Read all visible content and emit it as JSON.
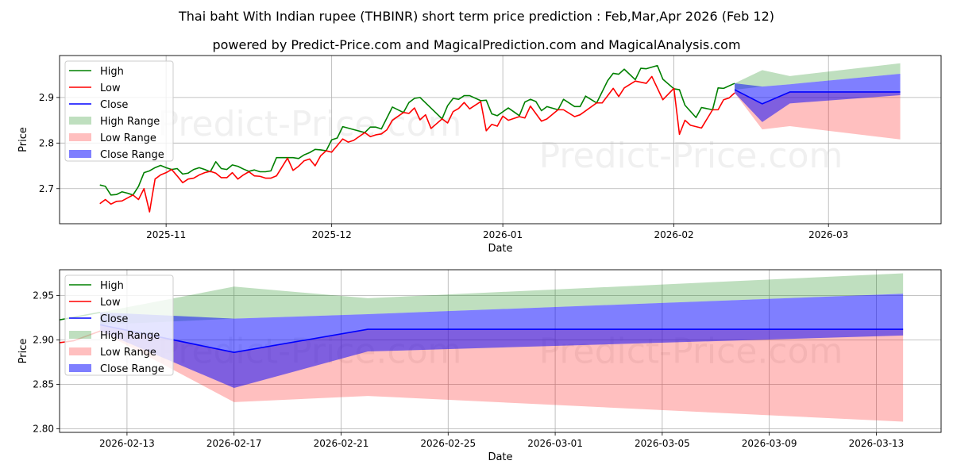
{
  "header": {
    "title": "Thai baht With Indian rupee (THBINR) short term price prediction : Feb,Mar,Apr 2026 (Feb 12)",
    "subtitle": "powered by Predict-Price.com and MagicalPrediction.com and MagicalAnalysis.com"
  },
  "watermark": "Predict-Price.com",
  "colors": {
    "high": "#008000",
    "low": "#ff0000",
    "close": "#0000ff",
    "high_range": "#008000",
    "low_range": "#ff0000",
    "close_range": "#0000ff"
  },
  "legend": [
    "High",
    "Low",
    "Close",
    "High Range",
    "Low Range",
    "Close Range"
  ],
  "chart_data": [
    {
      "type": "line",
      "x_unit": "days since 2025-11-01",
      "xlim": [
        -19.3,
        140.4
      ],
      "ylim": [
        2.623,
        2.992
      ],
      "xlabel": "Date",
      "ylabel": "Price",
      "grid": true,
      "legend_position": "top-left",
      "xticks": [
        {
          "x": 0,
          "label": "2025-11"
        },
        {
          "x": 30,
          "label": "2025-12"
        },
        {
          "x": 61,
          "label": "2026-01"
        },
        {
          "x": 92,
          "label": "2026-02"
        },
        {
          "x": 120,
          "label": "2026-03"
        }
      ],
      "yticks": [
        {
          "y": 2.7,
          "label": "2.7"
        },
        {
          "y": 2.8,
          "label": "2.8"
        },
        {
          "y": 2.9,
          "label": "2.9"
        }
      ]
    },
    {
      "type": "line",
      "x_unit": "days since 2025-11-01",
      "xlim": [
        101.48,
        134.42
      ],
      "ylim": [
        2.796,
        2.979
      ],
      "xlabel": "Date",
      "ylabel": "Price",
      "grid": true,
      "legend_position": "top-left",
      "xticks": [
        {
          "x": 104,
          "label": "2026-02-13"
        },
        {
          "x": 108,
          "label": "2026-02-17"
        },
        {
          "x": 112,
          "label": "2026-02-21"
        },
        {
          "x": 116,
          "label": "2026-02-25"
        },
        {
          "x": 120,
          "label": "2026-03-01"
        },
        {
          "x": 124,
          "label": "2026-03-05"
        },
        {
          "x": 128,
          "label": "2026-03-09"
        },
        {
          "x": 132,
          "label": "2026-03-13"
        }
      ],
      "yticks": [
        {
          "y": 2.8,
          "label": "2.80"
        },
        {
          "y": 2.85,
          "label": "2.85"
        },
        {
          "y": 2.9,
          "label": "2.90"
        },
        {
          "y": 2.95,
          "label": "2.95"
        }
      ]
    }
  ],
  "series": {
    "high": [
      [
        -12,
        2.708
      ],
      [
        -11,
        2.705
      ],
      [
        -10,
        2.686
      ],
      [
        -9,
        2.687
      ],
      [
        -8,
        2.693
      ],
      [
        -7,
        2.69
      ],
      [
        -6,
        2.686
      ],
      [
        -5,
        2.705
      ],
      [
        -4,
        2.735
      ],
      [
        -3,
        2.739
      ],
      [
        -2,
        2.746
      ],
      [
        -1,
        2.751
      ],
      [
        0,
        2.746
      ],
      [
        1,
        2.742
      ],
      [
        2,
        2.744
      ],
      [
        3,
        2.732
      ],
      [
        4,
        2.734
      ],
      [
        5,
        2.742
      ],
      [
        6,
        2.746
      ],
      [
        7,
        2.742
      ],
      [
        8,
        2.737
      ],
      [
        9,
        2.759
      ],
      [
        10,
        2.744
      ],
      [
        11,
        2.742
      ],
      [
        12,
        2.752
      ],
      [
        13,
        2.749
      ],
      [
        14,
        2.743
      ],
      [
        15,
        2.738
      ],
      [
        16,
        2.741
      ],
      [
        17,
        2.737
      ],
      [
        18,
        2.737
      ],
      [
        19,
        2.739
      ],
      [
        20,
        2.768
      ],
      [
        21,
        2.768
      ],
      [
        22,
        2.768
      ],
      [
        23,
        2.768
      ],
      [
        24,
        2.766
      ],
      [
        25,
        2.774
      ],
      [
        26,
        2.779
      ],
      [
        27,
        2.786
      ],
      [
        28,
        2.785
      ],
      [
        29,
        2.783
      ],
      [
        30,
        2.807
      ],
      [
        31,
        2.811
      ],
      [
        32,
        2.836
      ],
      [
        36,
        2.823
      ],
      [
        37,
        2.835
      ],
      [
        38,
        2.835
      ],
      [
        39,
        2.831
      ],
      [
        41,
        2.879
      ],
      [
        43,
        2.867
      ],
      [
        44,
        2.889
      ],
      [
        45,
        2.898
      ],
      [
        46,
        2.9
      ],
      [
        50,
        2.853
      ],
      [
        51,
        2.882
      ],
      [
        52,
        2.898
      ],
      [
        53,
        2.896
      ],
      [
        54,
        2.904
      ],
      [
        55,
        2.904
      ],
      [
        57,
        2.893
      ],
      [
        58,
        2.894
      ],
      [
        59,
        2.864
      ],
      [
        60,
        2.86
      ],
      [
        62,
        2.877
      ],
      [
        64,
        2.86
      ],
      [
        65,
        2.89
      ],
      [
        66,
        2.896
      ],
      [
        67,
        2.891
      ],
      [
        68,
        2.871
      ],
      [
        69,
        2.88
      ],
      [
        71,
        2.873
      ],
      [
        72,
        2.896
      ],
      [
        74,
        2.88
      ],
      [
        75,
        2.88
      ],
      [
        76,
        2.903
      ],
      [
        78,
        2.888
      ],
      [
        80,
        2.937
      ],
      [
        81,
        2.953
      ],
      [
        82,
        2.951
      ],
      [
        83,
        2.962
      ],
      [
        85,
        2.939
      ],
      [
        86,
        2.964
      ],
      [
        87,
        2.963
      ],
      [
        89,
        2.97
      ],
      [
        90,
        2.94
      ],
      [
        92,
        2.919
      ],
      [
        93,
        2.917
      ],
      [
        94,
        2.883
      ],
      [
        96,
        2.856
      ],
      [
        97,
        2.878
      ],
      [
        99,
        2.873
      ],
      [
        100,
        2.921
      ],
      [
        101,
        2.92
      ],
      [
        103,
        2.931
      ]
    ],
    "low": [
      [
        -12,
        2.667
      ],
      [
        -11,
        2.676
      ],
      [
        -10,
        2.666
      ],
      [
        -9,
        2.672
      ],
      [
        -8,
        2.673
      ],
      [
        -6,
        2.686
      ],
      [
        -5,
        2.676
      ],
      [
        -4,
        2.7
      ],
      [
        -3,
        2.649
      ],
      [
        -2,
        2.721
      ],
      [
        -1,
        2.73
      ],
      [
        0,
        2.735
      ],
      [
        1,
        2.742
      ],
      [
        2,
        2.728
      ],
      [
        3,
        2.713
      ],
      [
        4,
        2.721
      ],
      [
        5,
        2.723
      ],
      [
        6,
        2.73
      ],
      [
        7,
        2.735
      ],
      [
        8,
        2.738
      ],
      [
        9,
        2.734
      ],
      [
        10,
        2.724
      ],
      [
        11,
        2.724
      ],
      [
        12,
        2.735
      ],
      [
        13,
        2.721
      ],
      [
        14,
        2.73
      ],
      [
        15,
        2.737
      ],
      [
        16,
        2.728
      ],
      [
        17,
        2.727
      ],
      [
        18,
        2.723
      ],
      [
        19,
        2.723
      ],
      [
        20,
        2.728
      ],
      [
        22,
        2.767
      ],
      [
        23,
        2.74
      ],
      [
        24,
        2.749
      ],
      [
        25,
        2.761
      ],
      [
        26,
        2.765
      ],
      [
        27,
        2.75
      ],
      [
        28,
        2.772
      ],
      [
        29,
        2.783
      ],
      [
        30,
        2.78
      ],
      [
        32,
        2.809
      ],
      [
        33,
        2.802
      ],
      [
        34,
        2.806
      ],
      [
        36,
        2.823
      ],
      [
        37,
        2.814
      ],
      [
        38,
        2.818
      ],
      [
        39,
        2.82
      ],
      [
        40,
        2.829
      ],
      [
        41,
        2.85
      ],
      [
        43,
        2.867
      ],
      [
        44,
        2.865
      ],
      [
        45,
        2.877
      ],
      [
        46,
        2.851
      ],
      [
        47,
        2.862
      ],
      [
        48,
        2.832
      ],
      [
        50,
        2.853
      ],
      [
        51,
        2.844
      ],
      [
        52,
        2.869
      ],
      [
        53,
        2.876
      ],
      [
        54,
        2.889
      ],
      [
        55,
        2.875
      ],
      [
        57,
        2.891
      ],
      [
        58,
        2.827
      ],
      [
        59,
        2.841
      ],
      [
        60,
        2.837
      ],
      [
        61,
        2.859
      ],
      [
        62,
        2.85
      ],
      [
        64,
        2.858
      ],
      [
        65,
        2.855
      ],
      [
        66,
        2.881
      ],
      [
        68,
        2.848
      ],
      [
        69,
        2.853
      ],
      [
        71,
        2.873
      ],
      [
        72,
        2.873
      ],
      [
        74,
        2.858
      ],
      [
        75,
        2.862
      ],
      [
        78,
        2.888
      ],
      [
        79,
        2.888
      ],
      [
        81,
        2.92
      ],
      [
        82,
        2.902
      ],
      [
        83,
        2.921
      ],
      [
        85,
        2.936
      ],
      [
        87,
        2.931
      ],
      [
        88,
        2.946
      ],
      [
        90,
        2.895
      ],
      [
        92,
        2.92
      ],
      [
        93,
        2.819
      ],
      [
        94,
        2.85
      ],
      [
        95,
        2.839
      ],
      [
        97,
        2.833
      ],
      [
        99,
        2.873
      ],
      [
        100,
        2.873
      ],
      [
        101,
        2.895
      ],
      [
        102,
        2.899
      ],
      [
        103,
        2.91
      ]
    ],
    "close": [
      [
        103,
        2.917
      ],
      [
        108,
        2.886
      ],
      [
        113,
        2.912
      ],
      [
        133,
        2.912
      ]
    ]
  },
  "ranges": {
    "x": [
      103,
      108,
      113,
      133
    ],
    "high_range": {
      "upper": [
        2.931,
        2.96,
        2.947,
        2.975
      ],
      "lower": [
        2.917,
        2.924,
        2.929,
        2.952
      ]
    },
    "low_range": {
      "upper": [
        2.917,
        2.886,
        2.912,
        2.912
      ],
      "lower": [
        2.91,
        2.83,
        2.837,
        2.808
      ]
    },
    "close_range": {
      "upper": [
        2.931,
        2.924,
        2.929,
        2.952
      ],
      "lower": [
        2.91,
        2.846,
        2.887,
        2.905
      ]
    }
  }
}
